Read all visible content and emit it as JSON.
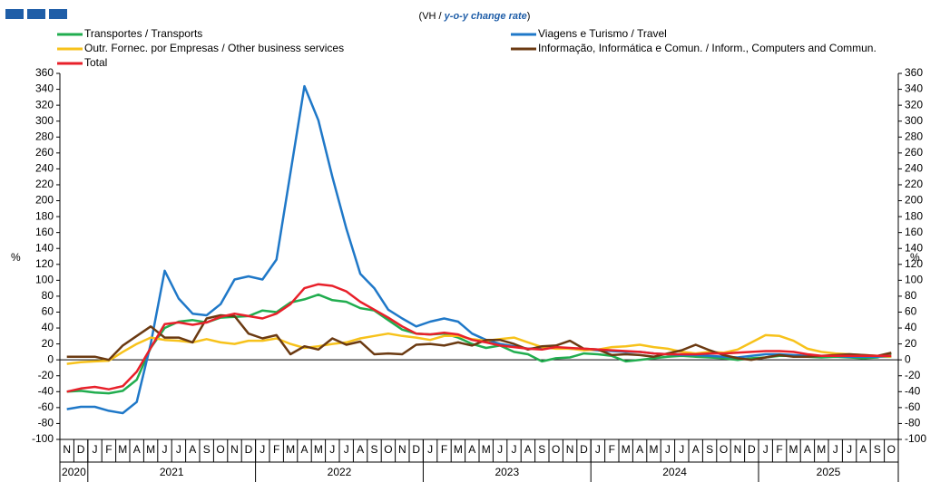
{
  "chart_data": {
    "type": "line",
    "subtitle": [
      "(VH / ",
      "y-o-y change rate",
      ")"
    ],
    "ylabel": "%",
    "categories": [
      "N",
      "D",
      "J",
      "F",
      "M",
      "A",
      "M",
      "J",
      "J",
      "A",
      "S",
      "O",
      "N",
      "D",
      "J",
      "F",
      "M",
      "A",
      "M",
      "J",
      "J",
      "A",
      "S",
      "O",
      "N",
      "D",
      "J",
      "F",
      "M",
      "A",
      "M",
      "J",
      "J",
      "A",
      "S",
      "O",
      "N",
      "D",
      "J",
      "F",
      "M",
      "A",
      "M",
      "J",
      "J",
      "A",
      "S",
      "O",
      "N",
      "D",
      "J",
      "F",
      "M",
      "A",
      "M",
      "J",
      "J",
      "A",
      "S",
      "O"
    ],
    "years": [
      "2020",
      "2021",
      "2022",
      "2023",
      "2024",
      "2025"
    ],
    "ylim": [
      -100,
      360
    ],
    "yticks": [
      -100,
      -80,
      -60,
      -40,
      -20,
      0,
      20,
      40,
      60,
      80,
      100,
      120,
      140,
      160,
      180,
      200,
      220,
      240,
      260,
      280,
      300,
      320,
      340,
      360
    ],
    "grid": false,
    "legend": "top",
    "series": [
      {
        "name": "Transportes / Transports",
        "color": "#21ad4f",
        "values": [
          -40,
          -39,
          -41,
          -42,
          -39,
          -25,
          15,
          40,
          48,
          50,
          47,
          53,
          54,
          55,
          62,
          60,
          72,
          76,
          82,
          75,
          73,
          65,
          62,
          50,
          38,
          33,
          32,
          33,
          28,
          20,
          15,
          18,
          10,
          7,
          -2,
          2,
          3,
          8,
          7,
          5,
          -2,
          0,
          2,
          4,
          5,
          4,
          3,
          2,
          0,
          2,
          3,
          5,
          5,
          4,
          3,
          4,
          3,
          2,
          3,
          8
        ]
      },
      {
        "name": "Viagens e Turismo / Travel",
        "color": "#1f78c8",
        "values": [
          -62,
          -59,
          -59,
          -64,
          -67,
          -53,
          20,
          112,
          77,
          58,
          56,
          70,
          101,
          105,
          101,
          126,
          235,
          344,
          301,
          230,
          165,
          108,
          90,
          63,
          52,
          42,
          48,
          52,
          48,
          33,
          25,
          20,
          17,
          14,
          15,
          15,
          14,
          13,
          12,
          11,
          10,
          10,
          8,
          7,
          6,
          6,
          5,
          4,
          3,
          5,
          7,
          7,
          6,
          5,
          5,
          5,
          4,
          4,
          4,
          4
        ]
      },
      {
        "name": "Outr. Fornec. por Empresas / Other business services",
        "color": "#f7c21b",
        "values": [
          -5,
          -3,
          -2,
          -1,
          10,
          20,
          28,
          25,
          24,
          22,
          26,
          22,
          20,
          24,
          24,
          27,
          20,
          15,
          17,
          20,
          22,
          27,
          30,
          33,
          30,
          28,
          25,
          30,
          30,
          26,
          24,
          26,
          28,
          22,
          16,
          14,
          14,
          12,
          13,
          16,
          17,
          19,
          16,
          14,
          10,
          8,
          10,
          9,
          13,
          22,
          31,
          30,
          24,
          14,
          10,
          8,
          7,
          6,
          5,
          4
        ]
      },
      {
        "name": "Informação, Informática e Comun. / Inform., Computers and Commun.",
        "color": "#6b3a12",
        "values": [
          4,
          4,
          4,
          0,
          18,
          30,
          42,
          28,
          28,
          22,
          52,
          56,
          55,
          33,
          27,
          31,
          7,
          17,
          13,
          27,
          19,
          23,
          7,
          8,
          7,
          19,
          20,
          18,
          22,
          18,
          25,
          25,
          20,
          13,
          17,
          18,
          24,
          14,
          13,
          6,
          7,
          6,
          4,
          8,
          12,
          19,
          12,
          6,
          2,
          0,
          3,
          6,
          4,
          4,
          5,
          6,
          7,
          6,
          5,
          9
        ]
      },
      {
        "name": "Total",
        "color": "#e8202a",
        "values": [
          -40,
          -36,
          -34,
          -37,
          -33,
          -15,
          15,
          45,
          47,
          44,
          47,
          54,
          58,
          55,
          52,
          58,
          70,
          90,
          95,
          93,
          86,
          73,
          63,
          53,
          42,
          33,
          32,
          34,
          32,
          25,
          22,
          18,
          16,
          14,
          13,
          16,
          15,
          14,
          13,
          12,
          11,
          10,
          8,
          7,
          7,
          7,
          8,
          8,
          9,
          10,
          11,
          11,
          10,
          7,
          5,
          5,
          5,
          5,
          5,
          5
        ]
      }
    ]
  }
}
